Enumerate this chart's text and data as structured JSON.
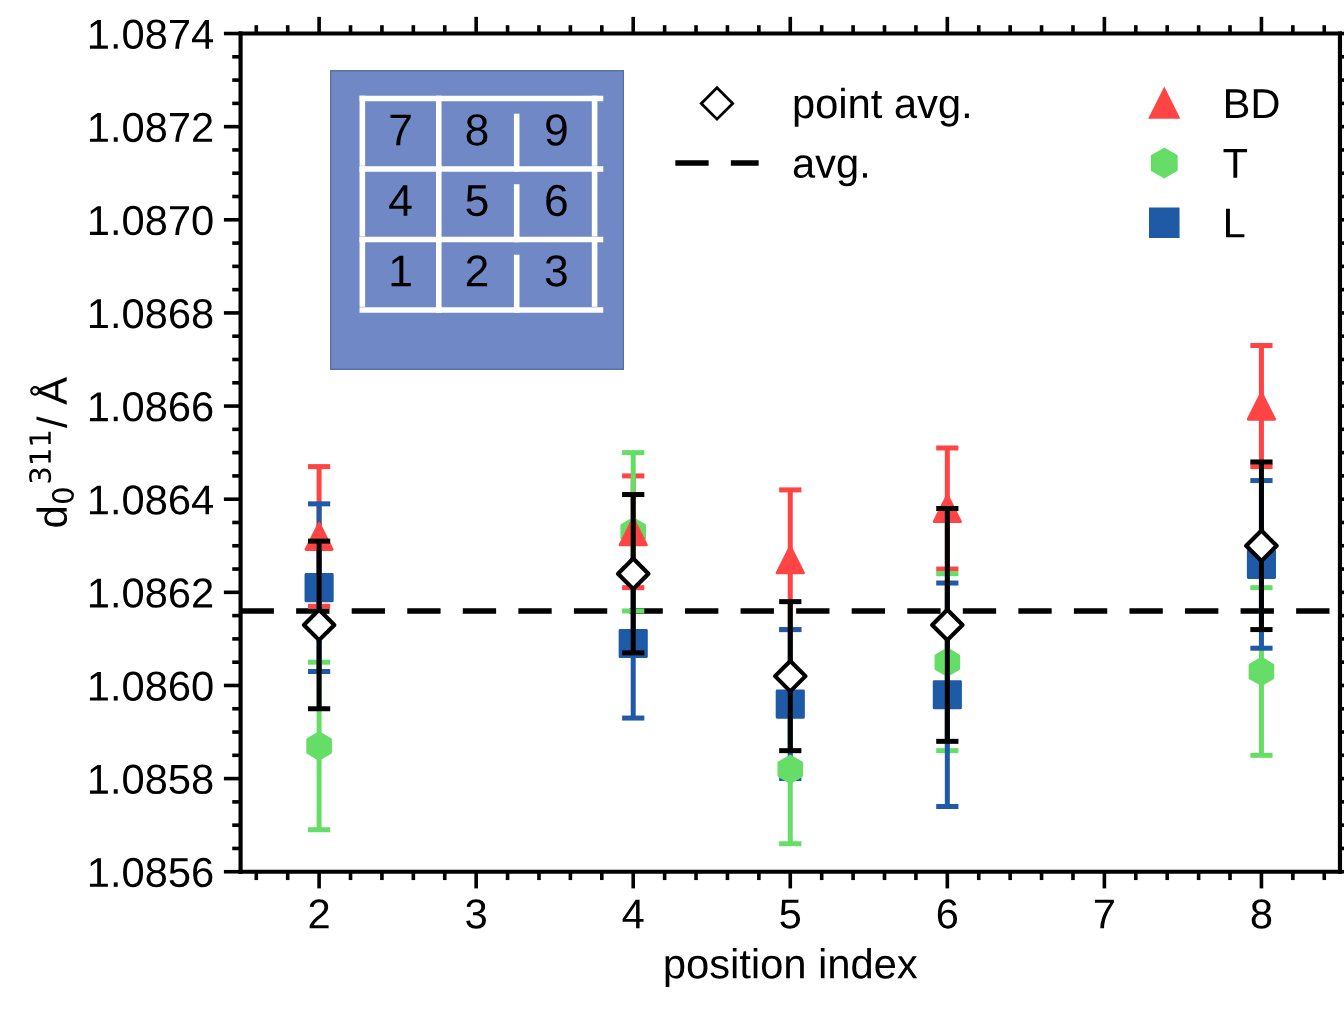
{
  "chart_data": {
    "type": "scatter",
    "xlabel": "position index",
    "ylabel": "d$_{0}$$^{311}$/ Å",
    "x": [
      2,
      4,
      5,
      6,
      8
    ],
    "xlim": [
      1.5,
      8.5
    ],
    "xticks": [
      2,
      3,
      4,
      5,
      6,
      7,
      8
    ],
    "ylim": [
      1.0856,
      1.0874
    ],
    "yticks": [
      1.0856,
      1.0858,
      {
        "value": 1.086,
        "label": "1.0860"
      },
      1.0862,
      1.0864,
      1.0866,
      1.0868,
      {
        "value": 1.087,
        "label": "1.0870"
      },
      1.0872,
      1.0874
    ],
    "series": [
      {
        "name": "point avg.",
        "color": "#000000",
        "marker": "diamond",
        "values": [
          1.08613,
          1.08624,
          1.08602,
          1.08613,
          1.0863
        ],
        "errors": [
          0.00018,
          0.00017,
          0.00016,
          0.00025,
          0.00018
        ]
      },
      {
        "name": "BD",
        "color": "#ff4444",
        "marker": "triangle",
        "values": [
          1.08632,
          1.08633,
          1.08627,
          1.08638,
          1.0866
        ],
        "errors": [
          0.00015,
          0.00012,
          0.00015,
          0.00013,
          0.00013
        ]
      },
      {
        "name": "T",
        "color": "#66dd66",
        "values": [
          1.08587,
          1.08633,
          1.08582,
          1.08605,
          1.08603
        ],
        "errors": [
          0.00018,
          0.00017,
          0.00016,
          0.00019,
          0.00018
        ]
      },
      {
        "name": "L",
        "color": "#1f5aa6",
        "marker": "square",
        "values": [
          1.08621,
          1.08609,
          1.08596,
          1.08598,
          1.08626
        ],
        "errors": [
          0.00018,
          0.00016,
          0.00016,
          0.00024,
          0.00018
        ]
      }
    ],
    "ref_lines": [
      {
        "axis": "y",
        "value": 1.08616,
        "label": "avg.",
        "color": "#000000",
        "line_style": "dashed"
      }
    ],
    "annotations": [
      "7",
      "8",
      "9",
      "4",
      "5",
      "6",
      "1",
      "2",
      "3"
    ],
    "legend": "top right",
    "grid": false
  }
}
